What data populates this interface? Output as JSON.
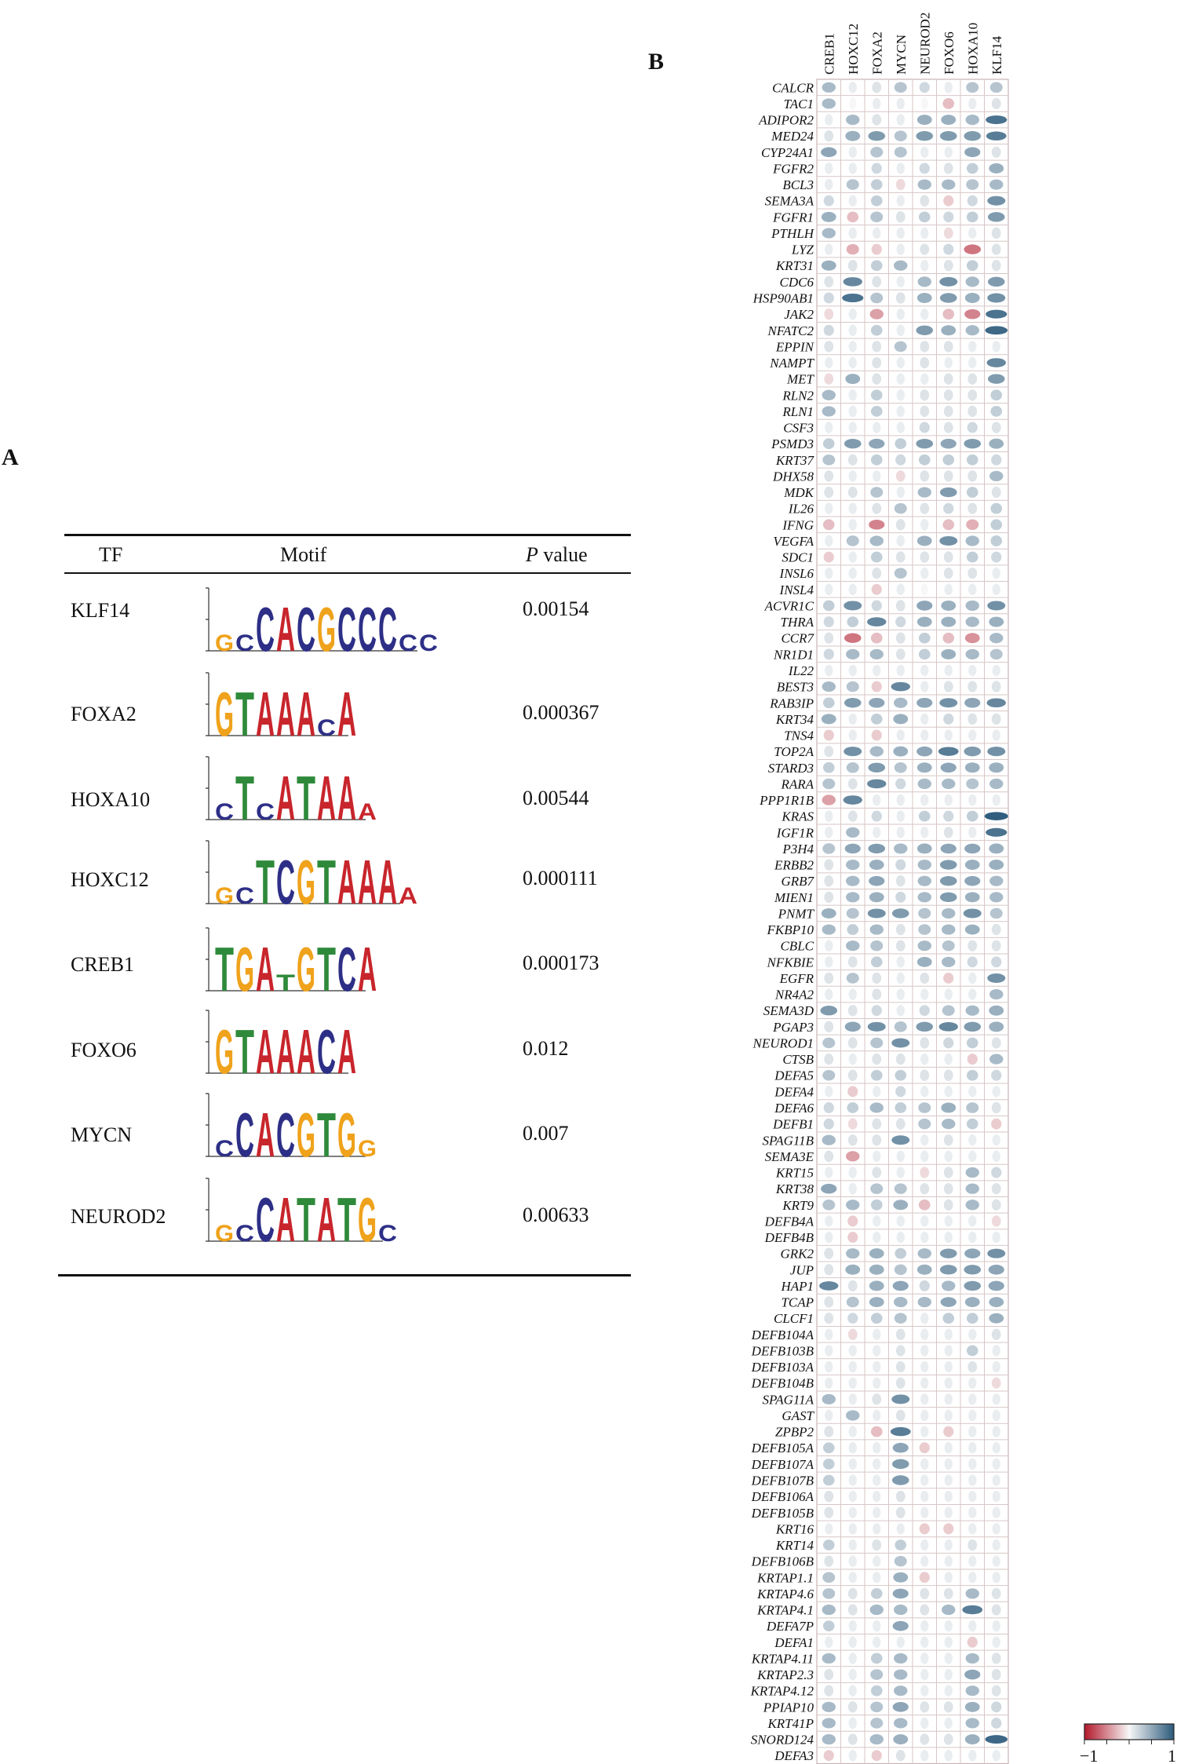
{
  "panel_a": {
    "label": "A",
    "headers": {
      "tf": "TF",
      "motif": "Motif",
      "p_italic": "P",
      "p_rest": " value"
    },
    "rows": [
      {
        "tf": "KLF14",
        "p": "0.00154",
        "motif": "gcCACGCCCcc"
      },
      {
        "tf": "FOXA2",
        "p": "0.000367",
        "motif": "GTAAAcA"
      },
      {
        "tf": "HOXA10",
        "p": "0.00544",
        "motif": "cTcATAAa"
      },
      {
        "tf": "HOXC12",
        "p": "0.000111",
        "motif": "gcTCGTAAAa"
      },
      {
        "tf": "CREB1",
        "p": "0.000173",
        "motif": "TGAtGTCA"
      },
      {
        "tf": "FOXO6",
        "p": "0.012",
        "motif": "GTAAACA"
      },
      {
        "tf": "MYCN",
        "p": "0.007",
        "motif": "cCACGTGg"
      },
      {
        "tf": "NEUROD2",
        "p": "0.00633",
        "motif": "gcCATATGc"
      }
    ]
  },
  "panel_b": {
    "label": "B"
  },
  "colors": {
    "negative": "#b2182b",
    "neutral": "#f7f7f7",
    "positive": "#2c5a7b",
    "A": "#c8252c",
    "C": "#2d2f87",
    "G": "#efa21b",
    "T": "#2e8a3a"
  },
  "chart_data": {
    "type": "heatmap",
    "title": "",
    "columns": [
      "CREB1",
      "HOXC12",
      "FOXA2",
      "MYCN",
      "NEUROD2",
      "FOXO6",
      "HOXA10",
      "KLF14"
    ],
    "rows": [
      "CALCR",
      "TAC1",
      "ADIPOR2",
      "MED24",
      "CYP24A1",
      "FGFR2",
      "BCL3",
      "SEMA3A",
      "FGFR1",
      "PTHLH",
      "LYZ",
      "KRT31",
      "CDC6",
      "HSP90AB1",
      "JAK2",
      "NFATC2",
      "EPPIN",
      "NAMPT",
      "MET",
      "RLN2",
      "RLN1",
      "CSF3",
      "PSMD3",
      "KRT37",
      "DHX58",
      "MDK",
      "IL26",
      "IFNG",
      "VEGFA",
      "SDC1",
      "INSL6",
      "INSL4",
      "ACVR1C",
      "THRA",
      "CCR7",
      "NR1D1",
      "IL22",
      "BEST3",
      "RAB3IP",
      "KRT34",
      "TNS4",
      "TOP2A",
      "STARD3",
      "RARA",
      "PPP1R1B",
      "KRAS",
      "IGF1R",
      "P3H4",
      "ERBB2",
      "GRB7",
      "MIEN1",
      "PNMT",
      "FKBP10",
      "CBLC",
      "NFKBIE",
      "EGFR",
      "NR4A2",
      "SEMA3D",
      "PGAP3",
      "NEUROD1",
      "CTSB",
      "DEFA5",
      "DEFA4",
      "DEFA6",
      "DEFB1",
      "SPAG11B",
      "SEMA3E",
      "KRT15",
      "KRT38",
      "KRT9",
      "DEFB4A",
      "DEFB4B",
      "GRK2",
      "JUP",
      "HAP1",
      "TCAP",
      "CLCF1",
      "DEFB104A",
      "DEFB103B",
      "DEFB103A",
      "DEFB104B",
      "SPAG11A",
      "GAST",
      "ZPBP2",
      "DEFB105A",
      "DEFB107A",
      "DEFB107B",
      "DEFB106A",
      "DEFB105B",
      "KRT16",
      "KRT14",
      "DEFB106B",
      "KRTAP1.1",
      "KRTAP4.6",
      "KRTAP4.1",
      "DEFA7P",
      "DEFA1",
      "KRTAP4.11",
      "KRTAP2.3",
      "KRTAP4.12",
      "PPIAP10",
      "KRT41P",
      "SNORD124",
      "DEFA3"
    ],
    "values": [
      [
        0.3,
        0.05,
        0.1,
        0.25,
        0.15,
        0.05,
        0.25,
        0.25
      ],
      [
        0.3,
        0.0,
        0.05,
        0.05,
        0.0,
        -0.2,
        0.05,
        0.1
      ],
      [
        0.05,
        0.3,
        0.1,
        0.05,
        0.35,
        0.35,
        0.3,
        0.65
      ],
      [
        0.1,
        0.35,
        0.45,
        0.25,
        0.45,
        0.45,
        0.45,
        0.6
      ],
      [
        0.4,
        0.05,
        0.25,
        0.25,
        0.05,
        0.05,
        0.4,
        0.1
      ],
      [
        0.05,
        0.05,
        0.15,
        0.05,
        0.15,
        0.1,
        0.2,
        0.35
      ],
      [
        0.05,
        0.25,
        0.2,
        -0.1,
        0.3,
        0.3,
        0.25,
        0.3
      ],
      [
        0.15,
        0.05,
        0.2,
        0.05,
        0.1,
        -0.15,
        0.15,
        0.5
      ],
      [
        0.35,
        -0.2,
        0.25,
        0.1,
        0.2,
        0.15,
        0.2,
        0.45
      ],
      [
        0.3,
        0.05,
        0.05,
        0.05,
        0.05,
        -0.1,
        0.05,
        0.1
      ],
      [
        0.05,
        -0.25,
        -0.15,
        0.05,
        0.1,
        0.15,
        -0.45,
        0.1
      ],
      [
        0.35,
        0.1,
        0.2,
        0.3,
        0.05,
        0.1,
        0.2,
        0.1
      ],
      [
        0.1,
        0.55,
        0.1,
        0.05,
        0.3,
        0.5,
        0.3,
        0.45
      ],
      [
        0.15,
        0.65,
        0.25,
        0.1,
        0.35,
        0.45,
        0.35,
        0.5
      ],
      [
        -0.1,
        0.05,
        -0.3,
        0.05,
        0.05,
        -0.2,
        -0.4,
        0.65
      ],
      [
        0.15,
        0.05,
        0.2,
        0.05,
        0.45,
        0.35,
        0.3,
        0.7
      ],
      [
        0.1,
        0.05,
        0.1,
        0.25,
        0.1,
        0.1,
        0.05,
        0.05
      ],
      [
        0.05,
        0.05,
        0.1,
        0.05,
        0.1,
        0.05,
        0.05,
        0.55
      ],
      [
        -0.1,
        0.35,
        0.1,
        0.05,
        0.05,
        0.1,
        0.1,
        0.45
      ],
      [
        0.3,
        0.05,
        0.2,
        0.05,
        0.1,
        0.1,
        0.1,
        0.2
      ],
      [
        0.3,
        0.05,
        0.2,
        0.05,
        0.1,
        0.1,
        0.1,
        0.2
      ],
      [
        0.05,
        0.05,
        0.05,
        0.05,
        0.15,
        0.1,
        0.15,
        0.1
      ],
      [
        0.2,
        0.45,
        0.4,
        0.2,
        0.45,
        0.4,
        0.45,
        0.35
      ],
      [
        0.25,
        0.1,
        0.2,
        0.15,
        0.2,
        0.2,
        0.2,
        0.15
      ],
      [
        0.1,
        0.05,
        0.05,
        -0.1,
        0.1,
        0.1,
        0.1,
        0.3
      ],
      [
        0.1,
        0.1,
        0.25,
        0.05,
        0.3,
        0.45,
        0.2,
        0.1
      ],
      [
        0.05,
        0.05,
        0.1,
        0.25,
        0.1,
        0.15,
        0.1,
        0.2
      ],
      [
        -0.2,
        0.05,
        -0.4,
        0.1,
        0.05,
        -0.2,
        -0.25,
        0.2
      ],
      [
        0.05,
        0.25,
        0.3,
        0.05,
        0.35,
        0.5,
        0.3,
        0.2
      ],
      [
        -0.15,
        0.05,
        0.2,
        0.1,
        0.1,
        0.1,
        0.2,
        0.15
      ],
      [
        0.05,
        0.05,
        0.1,
        0.25,
        0.05,
        0.1,
        0.1,
        0.05
      ],
      [
        0.05,
        0.05,
        -0.15,
        0.05,
        0.0,
        0.05,
        0.05,
        0.05
      ],
      [
        0.2,
        0.5,
        0.15,
        0.1,
        0.4,
        0.35,
        0.3,
        0.5
      ],
      [
        0.15,
        0.2,
        0.55,
        0.15,
        0.35,
        0.35,
        0.3,
        0.35
      ],
      [
        0.1,
        -0.45,
        -0.2,
        0.1,
        0.2,
        -0.2,
        -0.35,
        0.3
      ],
      [
        0.15,
        0.3,
        0.3,
        0.1,
        0.2,
        0.35,
        0.3,
        0.25
      ],
      [
        0.05,
        0.05,
        0.05,
        0.05,
        0.05,
        0.05,
        0.05,
        0.05
      ],
      [
        0.3,
        0.25,
        -0.15,
        0.55,
        0.05,
        0.1,
        0.1,
        0.1
      ],
      [
        0.2,
        0.45,
        0.4,
        0.3,
        0.4,
        0.5,
        0.4,
        0.55
      ],
      [
        0.35,
        0.05,
        0.2,
        0.35,
        0.05,
        0.15,
        0.1,
        0.1
      ],
      [
        -0.15,
        0.05,
        -0.15,
        0.05,
        0.05,
        0.05,
        0.05,
        0.05
      ],
      [
        0.1,
        0.5,
        0.3,
        0.35,
        0.4,
        0.6,
        0.45,
        0.5
      ],
      [
        0.2,
        0.25,
        0.45,
        0.25,
        0.35,
        0.4,
        0.35,
        0.35
      ],
      [
        0.25,
        0.1,
        0.55,
        0.15,
        0.3,
        0.3,
        0.25,
        0.3
      ],
      [
        -0.3,
        0.55,
        0.05,
        0.05,
        0.05,
        0.05,
        0.05,
        0.05
      ],
      [
        0.05,
        0.1,
        0.15,
        0.05,
        0.2,
        0.15,
        0.2,
        0.75
      ],
      [
        0.05,
        0.3,
        0.05,
        0.05,
        0.05,
        0.1,
        0.05,
        0.65
      ],
      [
        0.25,
        0.4,
        0.45,
        0.3,
        0.35,
        0.4,
        0.4,
        0.35
      ],
      [
        0.1,
        0.3,
        0.35,
        0.15,
        0.3,
        0.45,
        0.35,
        0.35
      ],
      [
        0.1,
        0.3,
        0.4,
        0.1,
        0.3,
        0.45,
        0.4,
        0.3
      ],
      [
        0.1,
        0.3,
        0.35,
        0.15,
        0.3,
        0.45,
        0.35,
        0.3
      ],
      [
        0.35,
        0.25,
        0.5,
        0.45,
        0.25,
        0.3,
        0.5,
        0.25
      ],
      [
        0.3,
        0.2,
        0.3,
        0.1,
        0.25,
        0.3,
        0.35,
        0.1
      ],
      [
        0.05,
        0.3,
        0.25,
        0.1,
        0.3,
        0.25,
        0.1,
        0.1
      ],
      [
        0.05,
        0.1,
        0.2,
        0.05,
        0.35,
        0.3,
        0.15,
        0.15
      ],
      [
        0.1,
        0.25,
        0.1,
        0.05,
        0.1,
        -0.15,
        0.05,
        0.5
      ],
      [
        0.05,
        0.05,
        0.1,
        0.05,
        0.05,
        0.05,
        0.05,
        0.3
      ],
      [
        0.45,
        0.1,
        0.15,
        0.05,
        0.15,
        0.25,
        0.3,
        0.35
      ],
      [
        0.1,
        0.4,
        0.5,
        0.25,
        0.45,
        0.55,
        0.45,
        0.35
      ],
      [
        0.25,
        0.1,
        0.25,
        0.5,
        0.1,
        0.15,
        0.2,
        0.1
      ],
      [
        0.1,
        0.05,
        0.1,
        0.1,
        0.05,
        0.05,
        -0.15,
        0.3
      ],
      [
        0.25,
        0.1,
        0.2,
        0.2,
        0.1,
        0.1,
        0.2,
        0.15
      ],
      [
        0.05,
        -0.15,
        0.05,
        0.15,
        0.05,
        0.05,
        0.05,
        0.05
      ],
      [
        0.15,
        0.2,
        0.3,
        0.2,
        0.25,
        0.35,
        0.25,
        0.1
      ],
      [
        0.15,
        -0.1,
        0.1,
        0.1,
        0.25,
        0.3,
        0.2,
        -0.15
      ],
      [
        0.3,
        0.1,
        0.1,
        0.5,
        0.05,
        0.1,
        0.05,
        0.05
      ],
      [
        0.1,
        -0.3,
        0.05,
        0.05,
        0.05,
        0.05,
        0.05,
        0.05
      ],
      [
        0.05,
        0.05,
        0.1,
        0.05,
        -0.1,
        0.1,
        0.3,
        0.15
      ],
      [
        0.4,
        0.05,
        0.25,
        0.25,
        0.1,
        0.1,
        0.3,
        0.1
      ],
      [
        0.25,
        0.3,
        0.2,
        0.35,
        -0.2,
        0.1,
        0.3,
        0.1
      ],
      [
        0.05,
        -0.15,
        0.05,
        0.05,
        0.05,
        0.05,
        0.05,
        -0.1
      ],
      [
        0.05,
        -0.15,
        0.05,
        0.05,
        0.05,
        0.05,
        0.05,
        0.05
      ],
      [
        0.1,
        0.3,
        0.35,
        0.2,
        0.3,
        0.45,
        0.4,
        0.5
      ],
      [
        0.1,
        0.35,
        0.35,
        0.25,
        0.35,
        0.45,
        0.45,
        0.4
      ],
      [
        0.55,
        0.1,
        0.35,
        0.4,
        0.15,
        0.3,
        0.45,
        0.4
      ],
      [
        0.1,
        0.25,
        0.35,
        0.3,
        0.3,
        0.4,
        0.35,
        0.35
      ],
      [
        0.1,
        0.15,
        0.2,
        0.25,
        0.05,
        0.2,
        0.2,
        0.35
      ],
      [
        0.05,
        -0.1,
        0.05,
        0.1,
        0.05,
        0.05,
        0.05,
        0.1
      ],
      [
        0.05,
        0.05,
        0.05,
        0.1,
        0.05,
        0.05,
        0.2,
        0.05
      ],
      [
        0.05,
        0.05,
        0.05,
        0.1,
        0.05,
        0.05,
        0.1,
        0.05
      ],
      [
        0.05,
        0.05,
        0.05,
        0.1,
        0.05,
        0.05,
        0.05,
        -0.1
      ],
      [
        0.3,
        0.05,
        0.1,
        0.5,
        0.05,
        0.05,
        0.05,
        0.05
      ],
      [
        0.05,
        0.3,
        0.05,
        0.1,
        0.05,
        0.05,
        0.05,
        0.05
      ],
      [
        0.1,
        0.05,
        -0.2,
        0.6,
        0.05,
        -0.15,
        0.05,
        0.05
      ],
      [
        0.2,
        0.05,
        0.05,
        0.4,
        -0.15,
        0.05,
        0.05,
        0.05
      ],
      [
        0.2,
        0.05,
        0.05,
        0.45,
        0.05,
        0.05,
        0.05,
        0.05
      ],
      [
        0.2,
        0.05,
        0.05,
        0.45,
        0.05,
        0.05,
        0.05,
        0.05
      ],
      [
        0.1,
        0.05,
        0.05,
        0.1,
        0.05,
        0.05,
        0.05,
        0.05
      ],
      [
        0.1,
        0.05,
        0.05,
        0.1,
        0.05,
        0.05,
        0.05,
        0.05
      ],
      [
        0.05,
        0.05,
        0.05,
        0.05,
        -0.15,
        -0.15,
        0.05,
        0.05
      ],
      [
        0.2,
        0.05,
        0.1,
        0.2,
        0.05,
        0.05,
        0.1,
        0.05
      ],
      [
        0.1,
        0.05,
        0.05,
        0.25,
        0.05,
        0.05,
        0.05,
        0.05
      ],
      [
        0.25,
        0.05,
        0.05,
        0.35,
        -0.15,
        0.05,
        0.05,
        0.05
      ],
      [
        0.25,
        0.1,
        0.2,
        0.4,
        0.1,
        0.1,
        0.3,
        0.1
      ],
      [
        0.3,
        0.1,
        0.3,
        0.3,
        0.1,
        0.3,
        0.6,
        0.1
      ],
      [
        0.2,
        0.05,
        0.05,
        0.4,
        0.05,
        0.05,
        0.05,
        0.05
      ],
      [
        0.05,
        0.05,
        0.05,
        0.05,
        0.05,
        0.05,
        -0.15,
        0.05
      ],
      [
        0.3,
        0.05,
        0.2,
        0.3,
        0.05,
        0.05,
        0.3,
        0.1
      ],
      [
        0.1,
        0.05,
        0.25,
        0.3,
        0.05,
        0.05,
        0.4,
        0.1
      ],
      [
        0.1,
        0.05,
        0.2,
        0.3,
        0.05,
        0.05,
        0.3,
        0.1
      ],
      [
        0.3,
        0.1,
        0.25,
        0.4,
        0.1,
        0.1,
        0.35,
        0.15
      ],
      [
        0.3,
        0.05,
        0.25,
        0.3,
        0.05,
        0.05,
        0.3,
        0.15
      ],
      [
        0.3,
        0.1,
        0.3,
        0.35,
        0.1,
        0.1,
        0.35,
        0.7
      ],
      [
        -0.15,
        0.05,
        -0.15,
        0.1,
        0.05,
        0.05,
        0.05,
        0.05
      ]
    ],
    "scale": {
      "min": -1,
      "max": 1
    },
    "colorbar_labels": [
      "−1",
      "1"
    ]
  }
}
